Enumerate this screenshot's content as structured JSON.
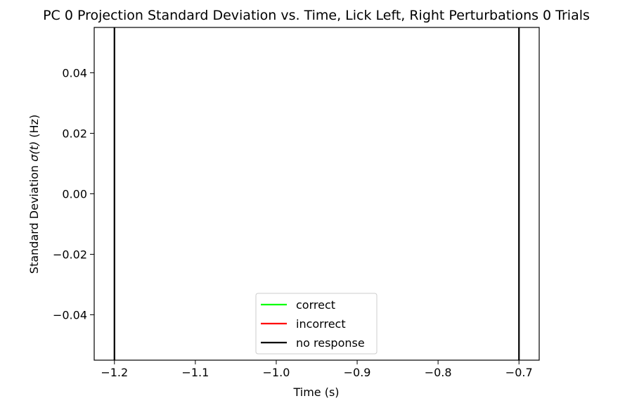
{
  "chart_data": {
    "type": "line",
    "title": "PC 0 Projection Standard Deviation vs. Time, Lick Left, Right Perturbations 0 Trials",
    "xlabel": "Time (s)",
    "ylabel_prefix": "Standard Deviation ",
    "ylabel_symbol": "σ(t)",
    "ylabel_suffix": " (Hz)",
    "xlim": [
      -1.225,
      -0.675
    ],
    "ylim": [
      -0.055,
      0.055
    ],
    "x_ticks": [
      {
        "value": -1.2,
        "label": "−1.2"
      },
      {
        "value": -1.1,
        "label": "−1.1"
      },
      {
        "value": -1.0,
        "label": "−1.0"
      },
      {
        "value": -0.9,
        "label": "−0.9"
      },
      {
        "value": -0.8,
        "label": "−0.8"
      },
      {
        "value": -0.7,
        "label": "−0.7"
      }
    ],
    "y_ticks": [
      {
        "value": 0.04,
        "label": "0.04"
      },
      {
        "value": 0.02,
        "label": "0.02"
      },
      {
        "value": 0.0,
        "label": "0.00"
      },
      {
        "value": -0.02,
        "label": "−0.02"
      },
      {
        "value": -0.04,
        "label": "−0.04"
      }
    ],
    "vlines": [
      {
        "x": -1.2,
        "color": "#000000"
      },
      {
        "x": -0.7,
        "color": "#000000"
      }
    ],
    "grid": false,
    "legend_position": "lower-center",
    "series": [
      {
        "name": "correct",
        "color": "#00ff00",
        "values": []
      },
      {
        "name": "incorrect",
        "color": "#ff0000",
        "values": []
      },
      {
        "name": "no response",
        "color": "#000000",
        "values": []
      }
    ]
  }
}
